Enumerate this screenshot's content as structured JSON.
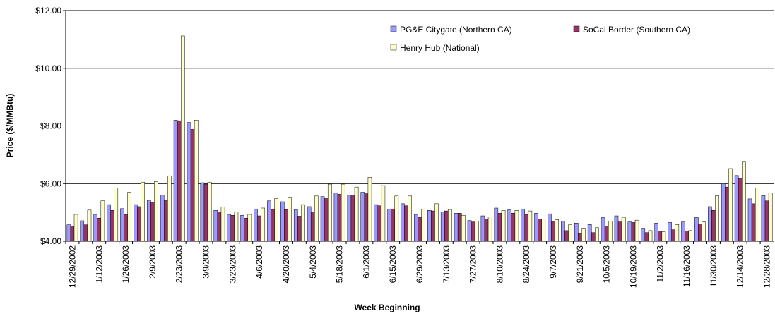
{
  "chart_data": {
    "type": "bar",
    "x_label": "Week Beginning",
    "y_label": "Price ($/MMBtu)",
    "categories": [
      "12/29/2002",
      null,
      "1/12/2003",
      null,
      "1/26/2003",
      null,
      "2/9/2003",
      null,
      "2/23/2003",
      null,
      "3/9/2003",
      null,
      "3/23/2003",
      null,
      "4/6/2003",
      null,
      "4/20/2003",
      null,
      "5/4/2003",
      null,
      "5/18/2003",
      null,
      "6/1/2003",
      null,
      "6/15/2003",
      null,
      "6/29/2003",
      null,
      "7/13/2003",
      null,
      "7/27/2003",
      null,
      "8/10/2003",
      null,
      "8/24/2003",
      null,
      "9/7/2003",
      null,
      "9/21/2003",
      null,
      "10/5/2003",
      null,
      "10/19/2003",
      null,
      "11/2/2003",
      null,
      "11/16/2003",
      null,
      "11/30/2003",
      null,
      "12/14/2003",
      null,
      "12/28/2003"
    ],
    "series": [
      {
        "name": "PG&E Citygate (Northern CA)",
        "color": "#9999ff",
        "values": [
          4.57,
          4.71,
          4.93,
          5.27,
          5.13,
          5.27,
          5.42,
          5.6,
          8.2,
          8.12,
          6.03,
          5.07,
          4.93,
          4.9,
          5.12,
          5.4,
          5.37,
          5.1,
          5.2,
          5.55,
          5.67,
          5.6,
          5.7,
          5.27,
          5.12,
          5.3,
          4.93,
          5.07,
          5.02,
          4.97,
          4.72,
          4.88,
          5.15,
          5.1,
          5.12,
          4.97,
          4.95,
          4.7,
          4.63,
          4.58,
          4.83,
          4.88,
          4.67,
          4.45,
          4.63,
          4.65,
          4.67,
          4.82,
          5.2,
          6.0,
          6.28,
          5.47,
          5.58
        ]
      },
      {
        "name": "SoCal Border (Southern CA)",
        "color": "#993366",
        "values": [
          4.52,
          4.57,
          4.8,
          5.07,
          4.93,
          5.2,
          5.35,
          5.42,
          8.18,
          7.88,
          5.98,
          5.02,
          4.9,
          4.8,
          4.88,
          5.1,
          5.1,
          4.87,
          5.02,
          5.48,
          5.63,
          5.6,
          5.65,
          5.23,
          5.12,
          5.23,
          4.83,
          5.05,
          5.05,
          4.97,
          4.67,
          4.77,
          4.97,
          4.97,
          4.93,
          4.77,
          4.7,
          4.37,
          4.27,
          4.3,
          4.53,
          4.67,
          4.65,
          4.3,
          4.35,
          4.4,
          4.35,
          4.6,
          5.07,
          5.88,
          6.18,
          5.3,
          5.4
        ]
      },
      {
        "name": "Henry Hub (National)",
        "color": "#ffffcc",
        "values": [
          4.93,
          5.08,
          5.4,
          5.85,
          5.7,
          6.05,
          6.07,
          6.27,
          11.12,
          8.2,
          6.05,
          5.18,
          5.02,
          4.93,
          5.15,
          5.48,
          5.5,
          5.27,
          5.57,
          5.98,
          5.98,
          5.88,
          6.22,
          5.93,
          5.57,
          5.57,
          5.12,
          5.3,
          5.1,
          4.9,
          4.7,
          4.85,
          5.07,
          5.07,
          5.05,
          4.77,
          4.75,
          4.57,
          4.45,
          4.47,
          4.7,
          4.83,
          4.73,
          4.37,
          4.33,
          4.58,
          4.37,
          4.67,
          5.58,
          6.52,
          6.77,
          5.85,
          5.68
        ]
      }
    ],
    "ylim": [
      4,
      12
    ],
    "yticks": [
      {
        "value": 4,
        "label": "$4.00"
      },
      {
        "value": 6,
        "label": "$6.00"
      },
      {
        "value": 8,
        "label": "$8.00"
      },
      {
        "value": 10,
        "label": "$10.00"
      },
      {
        "value": 12,
        "label": "$12.00"
      }
    ],
    "grid": true,
    "legend": "top-right"
  }
}
